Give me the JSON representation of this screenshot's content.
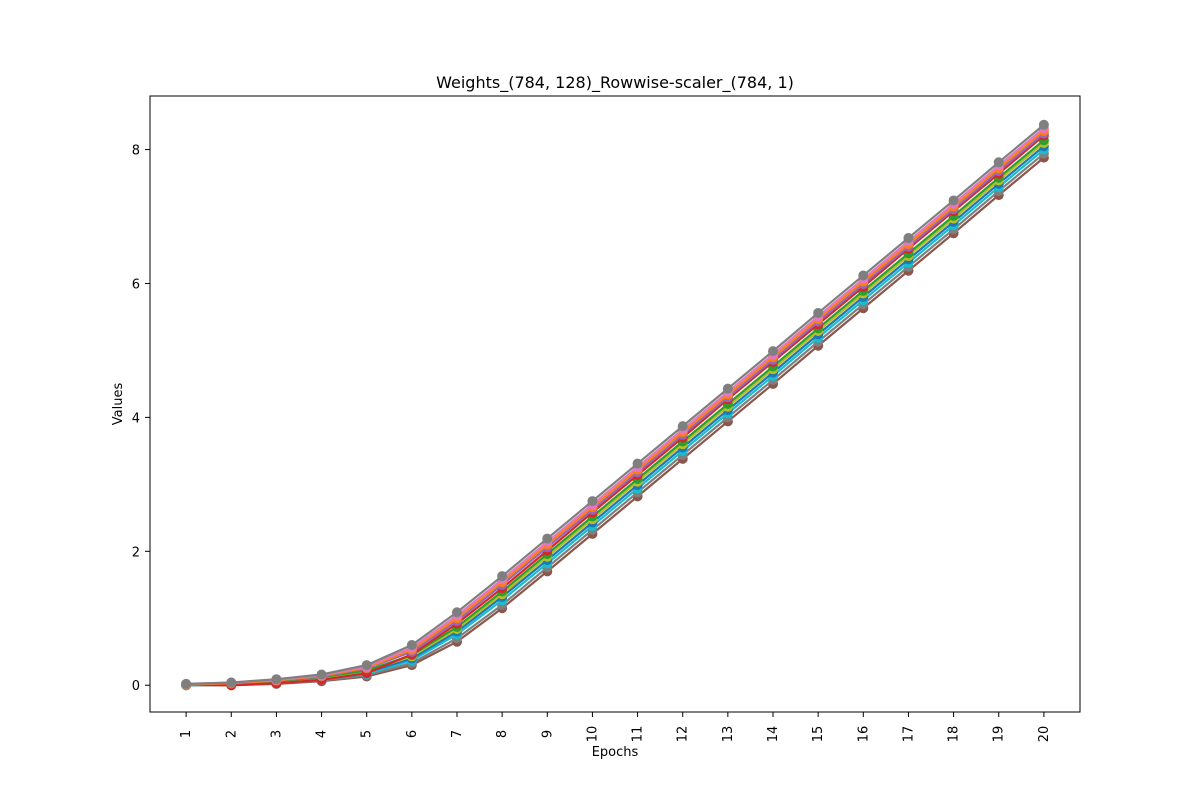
{
  "chart_data": {
    "type": "line",
    "title": "Weights_(784, 128)_Rowwise-scaler_(784, 1)",
    "xlabel": "Epochs",
    "ylabel": "Values",
    "x": [
      1,
      2,
      3,
      4,
      5,
      6,
      7,
      8,
      9,
      10,
      11,
      12,
      13,
      14,
      15,
      16,
      17,
      18,
      19,
      20
    ],
    "xticks": [
      "1",
      "2",
      "3",
      "4",
      "5",
      "6",
      "7",
      "8",
      "9",
      "10",
      "11",
      "12",
      "13",
      "14",
      "15",
      "16",
      "17",
      "18",
      "19",
      "20"
    ],
    "yticks": [
      0,
      2,
      4,
      6,
      8
    ],
    "ytick_labels": [
      "0",
      "2",
      "4",
      "6",
      "8"
    ],
    "xlim": [
      0.2,
      20.8
    ],
    "ylim": [
      -0.4,
      8.8
    ],
    "grid": false,
    "legend": "none",
    "marker": "circle",
    "series": [
      {
        "color": "#8c564b",
        "values": [
          0.0,
          0.0,
          0.02,
          0.06,
          0.13,
          0.3,
          0.65,
          1.15,
          1.7,
          2.26,
          2.82,
          3.38,
          3.94,
          4.5,
          5.07,
          5.63,
          6.19,
          6.75,
          7.32,
          7.88
        ]
      },
      {
        "color": "#7f7f7f",
        "values": [
          0.0,
          0.01,
          0.03,
          0.07,
          0.15,
          0.33,
          0.7,
          1.2,
          1.76,
          2.32,
          2.88,
          3.44,
          4.0,
          4.56,
          5.13,
          5.69,
          6.25,
          6.81,
          7.38,
          7.94
        ]
      },
      {
        "color": "#17becf",
        "values": [
          0.0,
          0.01,
          0.04,
          0.08,
          0.17,
          0.37,
          0.76,
          1.27,
          1.82,
          2.38,
          2.94,
          3.5,
          4.06,
          4.62,
          5.19,
          5.75,
          6.31,
          6.87,
          7.44,
          8.0
        ]
      },
      {
        "color": "#1f77b4",
        "values": [
          0.01,
          0.02,
          0.05,
          0.1,
          0.19,
          0.4,
          0.8,
          1.32,
          1.87,
          2.43,
          2.99,
          3.55,
          4.11,
          4.67,
          5.24,
          5.8,
          6.36,
          6.92,
          7.49,
          8.05
        ]
      },
      {
        "color": "#bcbd22",
        "values": [
          0.01,
          0.02,
          0.05,
          0.11,
          0.21,
          0.43,
          0.84,
          1.36,
          1.92,
          2.48,
          3.04,
          3.6,
          4.16,
          4.72,
          5.29,
          5.85,
          6.41,
          6.97,
          7.54,
          8.1
        ]
      },
      {
        "color": "#2ca02c",
        "values": [
          0.01,
          0.03,
          0.06,
          0.12,
          0.22,
          0.45,
          0.87,
          1.4,
          1.96,
          2.52,
          3.08,
          3.64,
          4.2,
          4.76,
          5.33,
          5.89,
          6.45,
          7.01,
          7.58,
          8.14
        ]
      },
      {
        "color": "#d62728",
        "values": [
          0.01,
          0.0,
          0.03,
          0.08,
          0.18,
          0.46,
          0.92,
          1.45,
          2.01,
          2.58,
          3.14,
          3.7,
          4.27,
          4.83,
          5.39,
          5.95,
          6.52,
          7.08,
          7.64,
          8.21
        ]
      },
      {
        "color": "#9467bd",
        "values": [
          0.01,
          0.03,
          0.07,
          0.13,
          0.25,
          0.5,
          0.96,
          1.5,
          2.06,
          2.62,
          3.18,
          3.74,
          4.3,
          4.86,
          5.43,
          5.99,
          6.55,
          7.11,
          7.68,
          8.24
        ]
      },
      {
        "color": "#ff7f0e",
        "values": [
          0.01,
          0.03,
          0.07,
          0.14,
          0.26,
          0.53,
          1.0,
          1.54,
          2.1,
          2.66,
          3.22,
          3.78,
          4.34,
          4.9,
          5.47,
          6.03,
          6.59,
          7.15,
          7.72,
          8.28
        ]
      },
      {
        "color": "#e377c2",
        "values": [
          0.02,
          0.04,
          0.08,
          0.15,
          0.28,
          0.56,
          1.04,
          1.58,
          2.14,
          2.7,
          3.26,
          3.82,
          4.38,
          4.94,
          5.51,
          6.07,
          6.63,
          7.19,
          7.76,
          8.32
        ]
      },
      {
        "color": "#7f7f7f",
        "values": [
          0.02,
          0.04,
          0.09,
          0.16,
          0.3,
          0.6,
          1.09,
          1.63,
          2.19,
          2.75,
          3.31,
          3.87,
          4.43,
          4.99,
          5.56,
          6.12,
          6.68,
          7.24,
          7.81,
          8.37
        ]
      }
    ]
  }
}
